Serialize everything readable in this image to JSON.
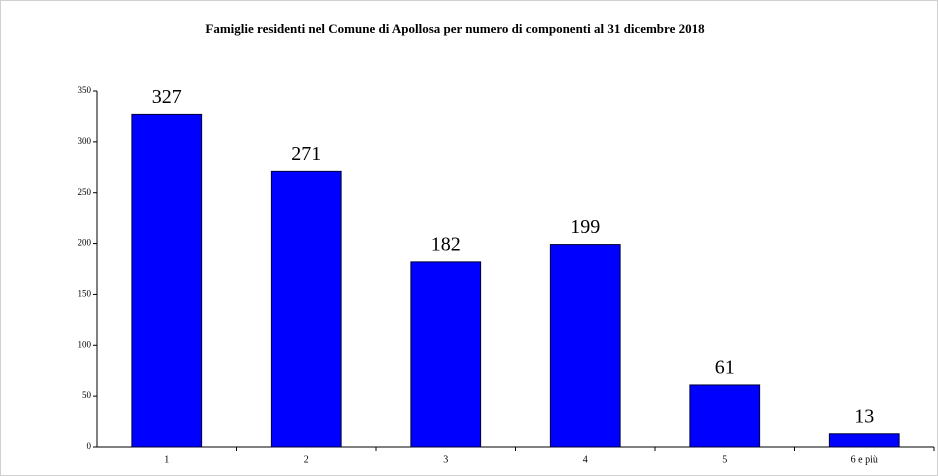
{
  "chart_data": {
    "type": "bar",
    "title": "Famiglie residenti nel Comune di Apollosa  per numero di componenti al 31 dicembre  2018",
    "categories": [
      "1",
      "2",
      "3",
      "4",
      "5",
      "6 e più"
    ],
    "values": [
      327,
      271,
      182,
      199,
      61,
      13
    ],
    "color": "#0000ff",
    "ylim": [
      0,
      350
    ],
    "yticks": [
      0,
      50,
      100,
      150,
      200,
      250,
      300,
      350
    ],
    "grid": false
  }
}
